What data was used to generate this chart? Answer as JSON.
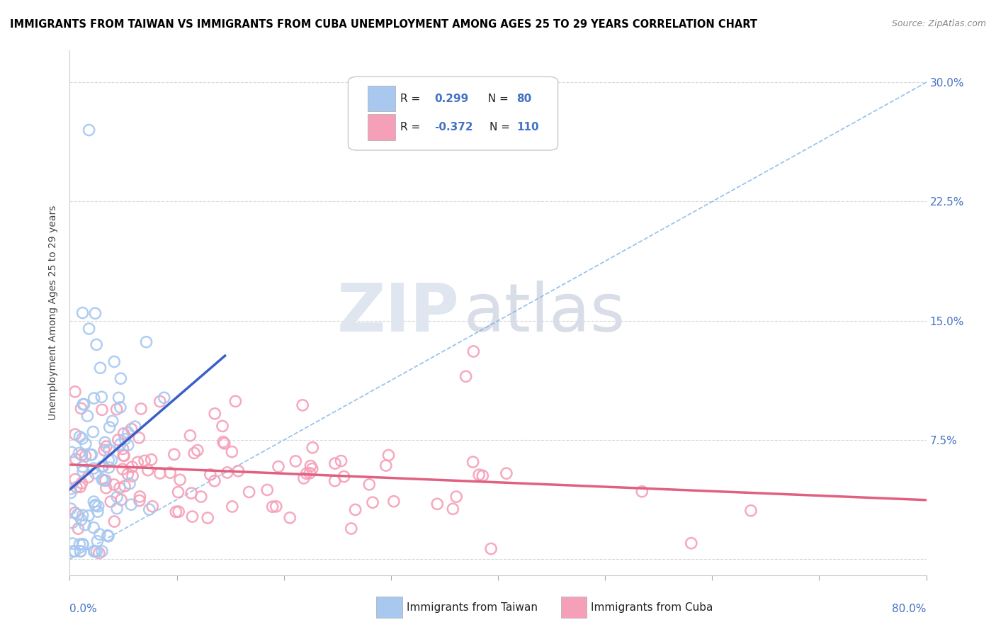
{
  "title": "IMMIGRANTS FROM TAIWAN VS IMMIGRANTS FROM CUBA UNEMPLOYMENT AMONG AGES 25 TO 29 YEARS CORRELATION CHART",
  "source": "Source: ZipAtlas.com",
  "ylabel": "Unemployment Among Ages 25 to 29 years",
  "xlim": [
    0.0,
    0.8
  ],
  "ylim": [
    -0.01,
    0.32
  ],
  "taiwan_R": 0.299,
  "taiwan_N": 80,
  "cuba_R": -0.372,
  "cuba_N": 110,
  "taiwan_color": "#a8c8f0",
  "cuba_color": "#f5a0b8",
  "taiwan_line_color": "#3a5fc8",
  "cuba_line_color": "#e06080",
  "diag_line_color": "#7ab0e8",
  "legend_taiwan": "Immigrants from Taiwan",
  "legend_cuba": "Immigrants from Cuba",
  "watermark_zip": "ZIP",
  "watermark_atlas": "atlas",
  "ytick_values": [
    0.0,
    0.075,
    0.15,
    0.225,
    0.3
  ],
  "ytick_labels": [
    "",
    "7.5%",
    "15.0%",
    "22.5%",
    "30.0%"
  ],
  "title_fontsize": 10.5,
  "source_fontsize": 9,
  "axis_label_fontsize": 10,
  "tick_label_fontsize": 11
}
